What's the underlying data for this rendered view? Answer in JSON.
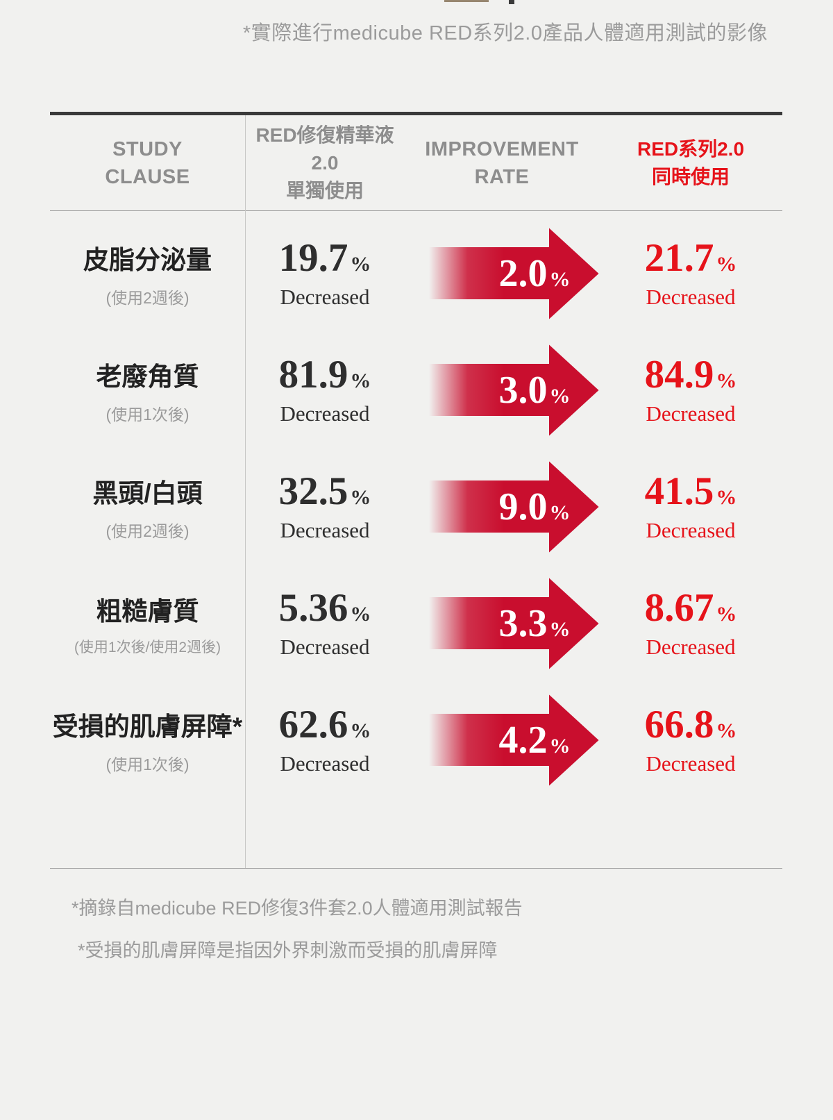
{
  "colors": {
    "background": "#f1f1ef",
    "arrow_red": "#c90e2e",
    "text_red": "#e6131a",
    "heading_gray": "#8d8d8d",
    "muted_gray": "#9b9b9b",
    "dark_text": "#2e2e2e"
  },
  "caption": "*實際進行medicube RED系列2.0產品人體適用測試的影像",
  "table": {
    "header": {
      "study_clause": [
        "STUDY",
        "CLAUSE"
      ],
      "single_use": [
        "RED修復精華液2.0",
        "單獨使用"
      ],
      "improvement_rate": [
        "IMPROVEMENT",
        "RATE"
      ],
      "combined_use": [
        "RED系列2.0",
        "同時使用"
      ]
    },
    "rows": [
      {
        "label": "皮脂分泌量",
        "condition": "(使用2週後)",
        "single": {
          "value": "19.7",
          "unit": "%",
          "caption": "Decreased"
        },
        "improvement": {
          "value": "2.0",
          "unit": "%"
        },
        "combined": {
          "value": "21.7",
          "unit": "%",
          "caption": "Decreased"
        }
      },
      {
        "label": "老廢角質",
        "condition": "(使用1次後)",
        "single": {
          "value": "81.9",
          "unit": "%",
          "caption": "Decreased"
        },
        "improvement": {
          "value": "3.0",
          "unit": "%"
        },
        "combined": {
          "value": "84.9",
          "unit": "%",
          "caption": "Decreased"
        }
      },
      {
        "label": "黑頭/白頭",
        "condition": "(使用2週後)",
        "single": {
          "value": "32.5",
          "unit": "%",
          "caption": "Decreased"
        },
        "improvement": {
          "value": "9.0",
          "unit": "%"
        },
        "combined": {
          "value": "41.5",
          "unit": "%",
          "caption": "Decreased"
        }
      },
      {
        "label": "粗糙膚質",
        "condition": "(使用1次後/使用2週後)",
        "single": {
          "value": "5.36",
          "unit": "%",
          "caption": "Decreased"
        },
        "improvement": {
          "value": "3.3",
          "unit": "%"
        },
        "combined": {
          "value": "8.67",
          "unit": "%",
          "caption": "Decreased"
        }
      },
      {
        "label": "受損的肌膚屏障*",
        "condition": "(使用1次後)",
        "single": {
          "value": "62.6",
          "unit": "%",
          "caption": "Decreased"
        },
        "improvement": {
          "value": "4.2",
          "unit": "%"
        },
        "combined": {
          "value": "66.8",
          "unit": "%",
          "caption": "Decreased"
        }
      }
    ]
  },
  "footnotes": [
    "*摘錄自medicube RED修復3件套2.0人體適用測試報告",
    "*受損的肌膚屏障是指因外界刺激而受損的肌膚屏障"
  ],
  "chart_data": {
    "type": "table",
    "title": "*實際進行medicube RED系列2.0產品人體適用測試的影像",
    "columns": [
      "STUDY CLAUSE",
      "RED修復精華液2.0 單獨使用",
      "IMPROVEMENT RATE",
      "RED系列2.0 同時使用"
    ],
    "rows": [
      {
        "study_clause": "皮脂分泌量 (使用2週後)",
        "single_use_decreased_pct": 19.7,
        "improvement_rate_pct": 2.0,
        "combined_use_decreased_pct": 21.7
      },
      {
        "study_clause": "老廢角質 (使用1次後)",
        "single_use_decreased_pct": 81.9,
        "improvement_rate_pct": 3.0,
        "combined_use_decreased_pct": 84.9
      },
      {
        "study_clause": "黑頭/白頭 (使用2週後)",
        "single_use_decreased_pct": 32.5,
        "improvement_rate_pct": 9.0,
        "combined_use_decreased_pct": 41.5
      },
      {
        "study_clause": "粗糙膚質 (使用1次後/使用2週後)",
        "single_use_decreased_pct": 5.36,
        "improvement_rate_pct": 3.3,
        "combined_use_decreased_pct": 8.67
      },
      {
        "study_clause": "受損的肌膚屏障* (使用1次後)",
        "single_use_decreased_pct": 62.6,
        "improvement_rate_pct": 4.2,
        "combined_use_decreased_pct": 66.8
      }
    ]
  }
}
